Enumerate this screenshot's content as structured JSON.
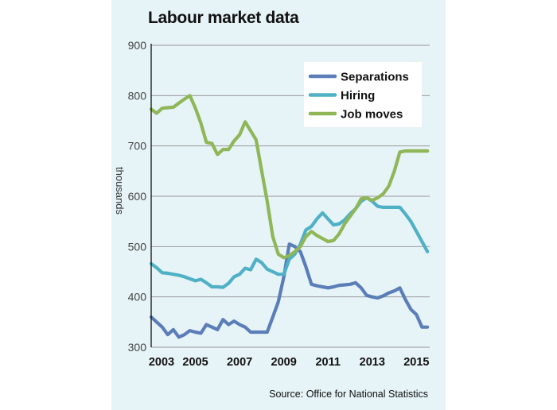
{
  "title": "Labour market data",
  "source": "Source: Office for National Statistics",
  "colors": {
    "separations": "#5b7db8",
    "hiring": "#4fb0c6",
    "job_moves": "#8fb657",
    "panel_bg": "#e6f3f7",
    "grid": "#9a9a9a"
  },
  "chart_data": {
    "type": "line",
    "title": "Labour market data",
    "ylabel": "thousands",
    "xlabel": "",
    "xlim": [
      2003,
      2015.6
    ],
    "ylim": [
      300,
      900
    ],
    "yticks": [
      300,
      400,
      500,
      600,
      700,
      800,
      900
    ],
    "xticks": [
      "2003",
      "2005",
      "2007",
      "2009",
      "2011",
      "2013",
      "2015"
    ],
    "grid": "horizontal",
    "legend": "top-right",
    "series": [
      {
        "name": "Separations",
        "color": "#5b7db8",
        "x": [
          2003.0,
          2003.25,
          2003.5,
          2003.75,
          2004.0,
          2004.25,
          2004.5,
          2004.75,
          2005.0,
          2005.25,
          2005.5,
          2005.75,
          2006.0,
          2006.25,
          2006.5,
          2006.75,
          2007.0,
          2007.25,
          2007.5,
          2007.75,
          2008.0,
          2008.25,
          2008.5,
          2008.75,
          2009.0,
          2009.25,
          2009.5,
          2009.75,
          2010.0,
          2010.25,
          2010.5,
          2010.75,
          2011.0,
          2011.25,
          2011.5,
          2011.75,
          2012.0,
          2012.25,
          2012.5,
          2012.75,
          2013.0,
          2013.25,
          2013.5,
          2013.75,
          2014.0,
          2014.25,
          2014.5,
          2014.75,
          2015.0,
          2015.25,
          2015.5
        ],
        "y": [
          360,
          350,
          340,
          325,
          335,
          320,
          325,
          333,
          330,
          328,
          345,
          340,
          335,
          355,
          345,
          352,
          345,
          340,
          330,
          330,
          330,
          330,
          360,
          390,
          440,
          505,
          500,
          490,
          460,
          425,
          422,
          420,
          418,
          420,
          423,
          424,
          425,
          428,
          418,
          403,
          400,
          398,
          402,
          408,
          412,
          418,
          395,
          375,
          365,
          340,
          340
        ]
      },
      {
        "name": "Hiring",
        "color": "#4fb0c6",
        "x": [
          2003.0,
          2003.25,
          2003.5,
          2003.75,
          2004.0,
          2004.25,
          2004.5,
          2004.75,
          2005.0,
          2005.25,
          2005.5,
          2005.75,
          2006.0,
          2006.25,
          2006.5,
          2006.75,
          2007.0,
          2007.25,
          2007.5,
          2007.75,
          2008.0,
          2008.25,
          2008.5,
          2008.75,
          2009.0,
          2009.25,
          2009.5,
          2009.75,
          2010.0,
          2010.25,
          2010.5,
          2010.75,
          2011.0,
          2011.25,
          2011.5,
          2011.75,
          2012.0,
          2012.25,
          2012.5,
          2012.75,
          2013.0,
          2013.25,
          2013.5,
          2013.75,
          2014.0,
          2014.25,
          2014.5,
          2014.75,
          2015.0,
          2015.25,
          2015.5
        ],
        "y": [
          466,
          458,
          448,
          447,
          445,
          443,
          440,
          436,
          432,
          435,
          428,
          420,
          420,
          419,
          427,
          440,
          445,
          457,
          454,
          475,
          468,
          455,
          450,
          445,
          445,
          475,
          485,
          505,
          533,
          540,
          555,
          567,
          555,
          543,
          545,
          553,
          565,
          575,
          590,
          597,
          590,
          580,
          578,
          578,
          578,
          578,
          565,
          550,
          530,
          510,
          490
        ]
      },
      {
        "name": "Job moves",
        "color": "#8fb657",
        "x": [
          2003.0,
          2003.25,
          2003.5,
          2003.75,
          2004.0,
          2004.25,
          2004.5,
          2004.75,
          2005.0,
          2005.25,
          2005.5,
          2005.75,
          2006.0,
          2006.25,
          2006.5,
          2006.75,
          2007.0,
          2007.25,
          2007.5,
          2007.75,
          2008.0,
          2008.25,
          2008.5,
          2008.75,
          2009.0,
          2009.25,
          2009.5,
          2009.75,
          2010.0,
          2010.25,
          2010.5,
          2010.75,
          2011.0,
          2011.25,
          2011.5,
          2011.75,
          2012.0,
          2012.25,
          2012.5,
          2012.75,
          2013.0,
          2013.25,
          2013.5,
          2013.75,
          2014.0,
          2014.25,
          2014.5,
          2014.75,
          2015.0,
          2015.25,
          2015.5
        ],
        "y": [
          773,
          765,
          775,
          776,
          777,
          785,
          793,
          800,
          775,
          745,
          707,
          705,
          683,
          693,
          693,
          710,
          722,
          748,
          730,
          712,
          650,
          590,
          520,
          485,
          478,
          482,
          490,
          500,
          520,
          530,
          522,
          516,
          510,
          512,
          525,
          545,
          560,
          575,
          595,
          597,
          592,
          597,
          605,
          620,
          650,
          688,
          690,
          690,
          690,
          690,
          690
        ]
      }
    ]
  }
}
